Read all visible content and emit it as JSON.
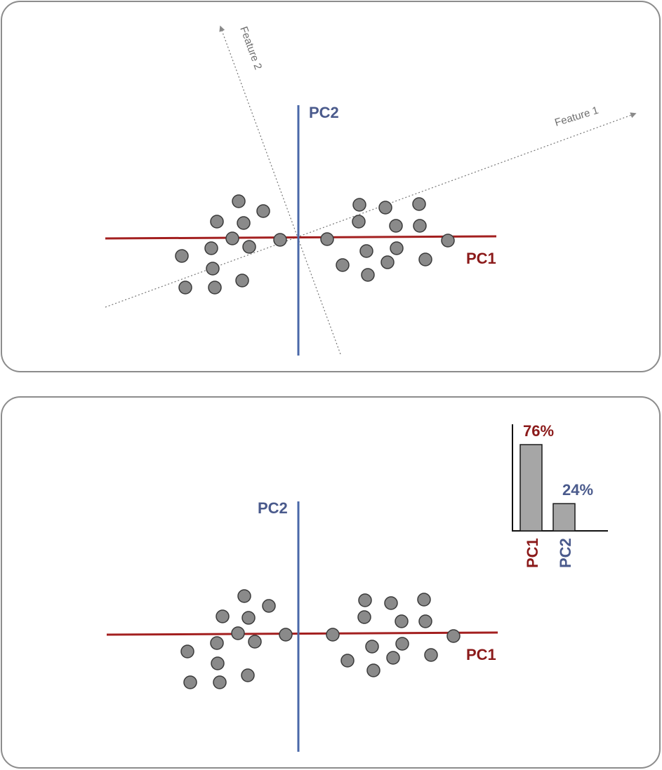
{
  "top_panel": {
    "pc1_label": "PC1",
    "pc2_label": "PC2",
    "feature1_label": "Feature 1",
    "feature2_label": "Feature 2"
  },
  "bottom_panel": {
    "pc1_label": "PC1",
    "pc2_label": "PC2"
  },
  "variance_chart": {
    "bars": [
      {
        "category": "PC1",
        "value": 76,
        "label": "76%",
        "color": "#8b1a1a"
      },
      {
        "category": "PC2",
        "value": 24,
        "label": "24%",
        "color": "#4a5a8c"
      }
    ]
  },
  "colors": {
    "pc1_axis": "#a31f1f",
    "pc2_axis": "#4a68a8",
    "pc1_text": "#8b1a1a",
    "pc2_text": "#4a5a8c",
    "point_fill": "#8a8a8a",
    "point_stroke": "#3a3a3a",
    "feature_axis": "#777777"
  }
}
